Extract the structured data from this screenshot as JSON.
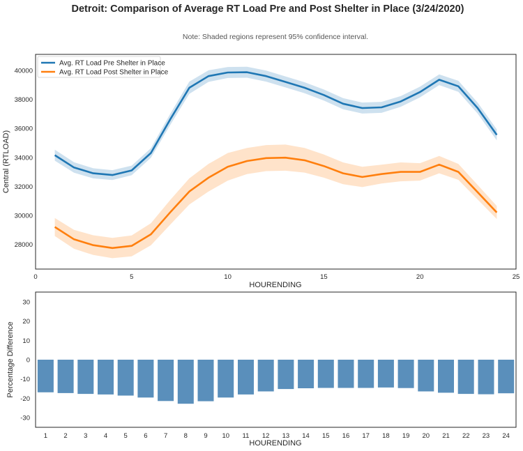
{
  "figure": {
    "title": "Detroit: Comparison of Average RT Load Pre and Post Shelter in Place (3/24/2020)",
    "note": "Note: Shaded regions represent 95% confidence interval."
  },
  "chart_data": [
    {
      "type": "line",
      "xlabel": "HOURENDING",
      "ylabel": "Central (RTLOAD)",
      "xlim": [
        0,
        25
      ],
      "ylim": [
        26300,
        41100
      ],
      "xticks": [
        0,
        5,
        10,
        15,
        20,
        25
      ],
      "yticks": [
        28000,
        30000,
        32000,
        34000,
        36000,
        38000,
        40000
      ],
      "grid": false,
      "legend": "top-left",
      "x": [
        1,
        2,
        3,
        4,
        5,
        6,
        7,
        8,
        9,
        10,
        11,
        12,
        13,
        14,
        15,
        16,
        17,
        18,
        19,
        20,
        21,
        22,
        23,
        24
      ],
      "series": [
        {
          "name": "Avg. RT Load Pre Shelter in Place",
          "color": "#1f77b4",
          "values": [
            34150,
            33300,
            32900,
            32780,
            33100,
            34300,
            36600,
            38800,
            39600,
            39850,
            39870,
            39600,
            39200,
            38800,
            38300,
            37700,
            37400,
            37450,
            37850,
            38500,
            39350,
            38900,
            37400,
            35550
          ],
          "ci_halfwidth": [
            380,
            360,
            350,
            340,
            330,
            330,
            380,
            420,
            400,
            380,
            380,
            380,
            380,
            380,
            380,
            380,
            380,
            380,
            370,
            370,
            370,
            380,
            380,
            380
          ]
        },
        {
          "name": "Avg. RT Load Post Shelter in Place",
          "color": "#ff7f0e",
          "values": [
            29200,
            28350,
            27950,
            27750,
            27900,
            28700,
            30200,
            31650,
            32600,
            33350,
            33750,
            33950,
            33980,
            33800,
            33400,
            32900,
            32650,
            32850,
            33000,
            33000,
            33500,
            33000,
            31600,
            30200
          ],
          "ci_halfwidth": [
            620,
            650,
            680,
            700,
            720,
            760,
            850,
            900,
            950,
            950,
            900,
            900,
            900,
            850,
            800,
            750,
            700,
            650,
            650,
            600,
            600,
            550,
            500,
            450
          ]
        }
      ]
    },
    {
      "type": "bar",
      "xlabel": "HOURENDING",
      "ylabel": "Percentage Difference",
      "ylim": [
        -35,
        35
      ],
      "yticks": [
        -30,
        -20,
        -10,
        0,
        10,
        20,
        30
      ],
      "grid": false,
      "color": "#5a8fbb",
      "categories": [
        "1",
        "2",
        "3",
        "4",
        "5",
        "6",
        "7",
        "8",
        "9",
        "10",
        "11",
        "12",
        "13",
        "14",
        "15",
        "16",
        "17",
        "18",
        "19",
        "20",
        "21",
        "22",
        "23",
        "24"
      ],
      "values": [
        -16.9,
        -17.3,
        -17.7,
        -18.0,
        -18.6,
        -19.6,
        -21.4,
        -22.8,
        -21.5,
        -19.6,
        -18.0,
        -16.4,
        -15.2,
        -14.8,
        -14.6,
        -14.6,
        -14.6,
        -14.4,
        -14.7,
        -16.4,
        -17.1,
        -17.7,
        -17.9,
        -17.4
      ]
    }
  ]
}
